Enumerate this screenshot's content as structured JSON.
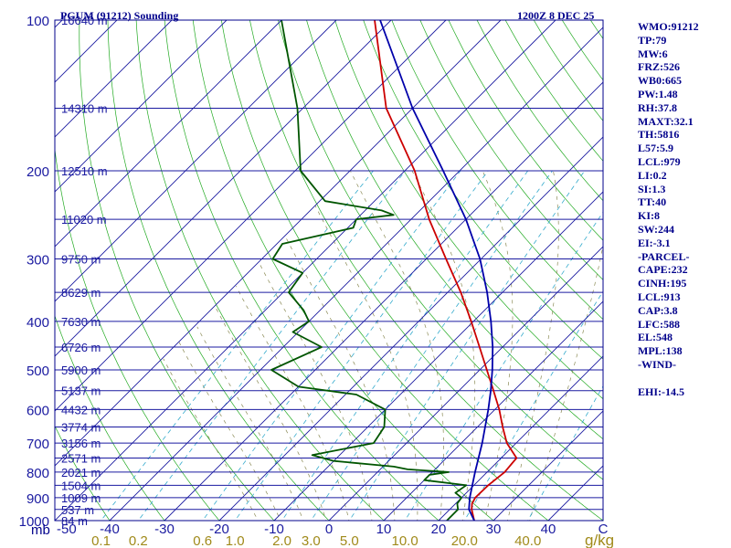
{
  "chart_data": {
    "type": "skew-t",
    "title": "PGUM (91212) Sounding",
    "valid_time": "1200Z  8 DEC 25",
    "pressure_unit": "mb",
    "pressure_range": [
      1000,
      100
    ],
    "temperature_range_c": [
      -50,
      50
    ],
    "pressure_ticks": [
      100,
      200,
      300,
      400,
      500,
      600,
      700,
      800,
      900,
      1000
    ],
    "temperature_ticks": [
      "-50",
      "-40",
      "-30",
      "-20",
      "-10",
      "0",
      "10",
      "20",
      "30",
      "40",
      "C"
    ],
    "mixing_ratio_unit": "g/kg",
    "mixing_ratio_ticks": [
      "0.1",
      "0.2",
      "0.6",
      "1.0",
      "2.0",
      "3.0",
      "5.0",
      "10.0",
      "20.0",
      "40.0"
    ],
    "height_levels": [
      {
        "p": 100,
        "label": "16640 m"
      },
      {
        "p": 150,
        "label": "14310 m"
      },
      {
        "p": 200,
        "label": "12510 m"
      },
      {
        "p": 250,
        "label": "11020 m"
      },
      {
        "p": 300,
        "label": "9750 m"
      },
      {
        "p": 350,
        "label": "8629 m"
      },
      {
        "p": 400,
        "label": "7630 m"
      },
      {
        "p": 450,
        "label": "6726 m"
      },
      {
        "p": 500,
        "label": "5900 m"
      },
      {
        "p": 550,
        "label": "5137 m"
      },
      {
        "p": 600,
        "label": "4432 m"
      },
      {
        "p": 650,
        "label": "3774 m"
      },
      {
        "p": 700,
        "label": "3156 m"
      },
      {
        "p": 750,
        "label": "2571 m"
      },
      {
        "p": 800,
        "label": "2021 m"
      },
      {
        "p": 850,
        "label": "1504 m"
      },
      {
        "p": 900,
        "label": "1009 m"
      },
      {
        "p": 950,
        "label": "537 m"
      },
      {
        "p": 1000,
        "label": "84 m"
      }
    ],
    "series": [
      {
        "name": "Temperature",
        "color": "#cc0000",
        "points": [
          [
            1000,
            26.5
          ],
          [
            950,
            24
          ],
          [
            925,
            23
          ],
          [
            900,
            22.5
          ],
          [
            850,
            22.6
          ],
          [
            800,
            23.2
          ],
          [
            750,
            22.8
          ],
          [
            700,
            18.3
          ],
          [
            650,
            14.6
          ],
          [
            600,
            10.8
          ],
          [
            550,
            6.3
          ],
          [
            500,
            1.3
          ],
          [
            450,
            -4.2
          ],
          [
            400,
            -10.4
          ],
          [
            350,
            -17.6
          ],
          [
            300,
            -26.4
          ],
          [
            250,
            -36.7
          ],
          [
            200,
            -48.2
          ],
          [
            150,
            -64.8
          ],
          [
            100,
            -83
          ]
        ]
      },
      {
        "name": "Dewpoint",
        "color": "#005500",
        "points": [
          [
            1000,
            21.5
          ],
          [
            975,
            21.5
          ],
          [
            950,
            21.5
          ],
          [
            925,
            20.3
          ],
          [
            900,
            20
          ],
          [
            880,
            18
          ],
          [
            850,
            18.6
          ],
          [
            830,
            10
          ],
          [
            810,
            10
          ],
          [
            800,
            13
          ],
          [
            790,
            5
          ],
          [
            780,
            2
          ],
          [
            760,
            -10
          ],
          [
            740,
            -15
          ],
          [
            700,
            -6
          ],
          [
            650,
            -7
          ],
          [
            600,
            -10
          ],
          [
            560,
            -18
          ],
          [
            540,
            -30
          ],
          [
            500,
            -38
          ],
          [
            450,
            -33
          ],
          [
            420,
            -41
          ],
          [
            400,
            -40
          ],
          [
            380,
            -43
          ],
          [
            350,
            -49
          ],
          [
            320,
            -50
          ],
          [
            300,
            -58
          ],
          [
            280,
            -59
          ],
          [
            260,
            -49
          ],
          [
            250,
            -50
          ],
          [
            245,
            -44
          ],
          [
            240,
            -47
          ],
          [
            230,
            -59
          ],
          [
            200,
            -69
          ],
          [
            150,
            -81
          ],
          [
            100,
            -100
          ]
        ]
      },
      {
        "name": "Parcel",
        "color": "#0000aa",
        "points": [
          [
            1000,
            26.5
          ],
          [
            950,
            23.5
          ],
          [
            900,
            21.5
          ],
          [
            850,
            19.7
          ],
          [
            800,
            17.8
          ],
          [
            700,
            13.8
          ],
          [
            600,
            8.8
          ],
          [
            550,
            5.8
          ],
          [
            500,
            2.3
          ],
          [
            450,
            -1.8
          ],
          [
            400,
            -6.8
          ],
          [
            350,
            -12.8
          ],
          [
            300,
            -20.2
          ],
          [
            250,
            -30
          ],
          [
            200,
            -43
          ],
          [
            150,
            -60
          ],
          [
            100,
            -82
          ]
        ]
      }
    ],
    "indices": [
      "WMO:91212",
      "TP:79",
      "MW:6",
      "FRZ:526",
      "WB0:665",
      "PW:1.48",
      "RH:37.8",
      "MAXT:32.1",
      "TH:5816",
      "L57:5.9",
      "LCL:979",
      "LI:0.2",
      "SI:1.3",
      "TT:40",
      "KI:8",
      "SW:244",
      "EI:-3.1",
      "-PARCEL-",
      "CAPE:232",
      "CINH:195",
      "LCL:913",
      "CAP:3.8",
      "LFC:588",
      "EL:548",
      "MPL:138",
      "-WIND-",
      "",
      "EHI:-14.5"
    ]
  }
}
